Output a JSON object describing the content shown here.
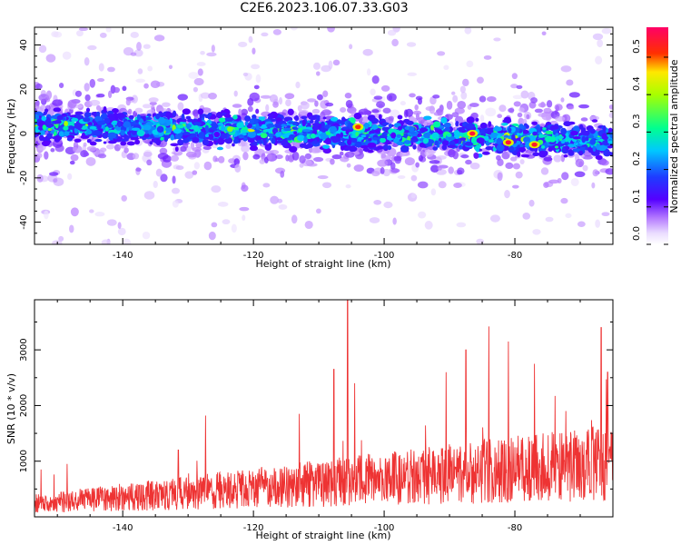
{
  "page": {
    "title": "C2E6.2023.106.07.33.G03"
  },
  "chart_data": [
    {
      "type": "heatmap",
      "xlabel": "Height of straight line (km)",
      "ylabel": "Frequency (Hz)",
      "xlim": [
        -153.5,
        -65
      ],
      "ylim": [
        -50,
        48
      ],
      "x_ticks": [
        -140,
        -120,
        -100,
        -80
      ],
      "y_ticks": [
        -40,
        -20,
        0,
        20,
        40
      ],
      "colorbar": {
        "label": "Normalized spectral amplitude",
        "range": [
          0,
          0.58
        ],
        "ticks": [
          "0.0",
          "0.1",
          "0.2",
          "0.3",
          "0.4",
          "0.5"
        ],
        "tick_values": [
          0,
          0.1,
          0.2,
          0.3,
          0.4,
          0.5
        ]
      },
      "band": {
        "center_hz_start": 4,
        "center_hz_end": -3,
        "halfwidth_hz": 8,
        "peak_amplitude": 0.55,
        "peaks": [
          {
            "x": -104,
            "y": 3,
            "amp": 0.52
          },
          {
            "x": -86.5,
            "y": 0,
            "amp": 0.55
          },
          {
            "x": -81,
            "y": -4,
            "amp": 0.55
          },
          {
            "x": -77,
            "y": -5,
            "amp": 0.54
          }
        ]
      }
    },
    {
      "type": "line",
      "xlabel": "Height of straight line (km)",
      "ylabel": "SNR (10 * v/v)",
      "xlim": [
        -153.5,
        -65
      ],
      "ylim": [
        0,
        3900
      ],
      "x_ticks": [
        -140,
        -120,
        -100,
        -80
      ],
      "y_ticks": [
        1000,
        2000,
        3000
      ],
      "color": "#ee3333",
      "baseline": {
        "start": 280,
        "end": 1150
      },
      "spikes": [
        {
          "x": -152.5,
          "y": 850
        },
        {
          "x": -150.5,
          "y": 760
        },
        {
          "x": -148.5,
          "y": 950
        },
        {
          "x": -131.5,
          "y": 1200
        },
        {
          "x": -127.3,
          "y": 1820
        },
        {
          "x": -113.0,
          "y": 1850
        },
        {
          "x": -105.6,
          "y": 3900
        },
        {
          "x": -107.7,
          "y": 2650
        },
        {
          "x": -104.5,
          "y": 2400
        },
        {
          "x": -90.5,
          "y": 2600
        },
        {
          "x": -87.5,
          "y": 3000
        },
        {
          "x": -84.0,
          "y": 3420
        },
        {
          "x": -81.0,
          "y": 3150
        },
        {
          "x": -77.0,
          "y": 2750
        },
        {
          "x": -66.8,
          "y": 3400
        },
        {
          "x": -65.8,
          "y": 2600
        }
      ]
    }
  ]
}
